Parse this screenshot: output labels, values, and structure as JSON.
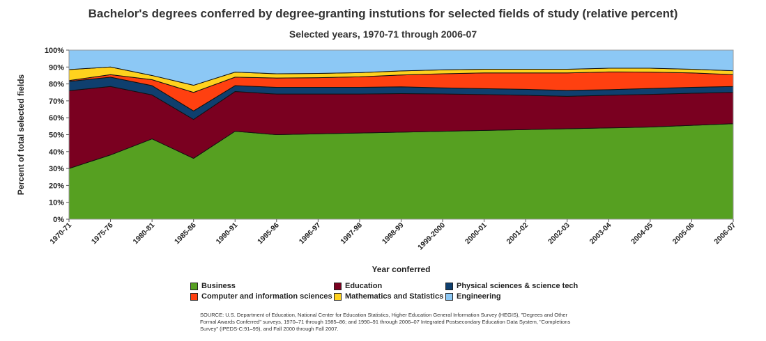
{
  "header": {
    "title": "Bachelor's degrees conferred by degree-granting instutions for selected fields of study (relative percent)",
    "subtitle": "Selected years, 1970-71 through 2006-07"
  },
  "source": "SOURCE: U.S. Department of Education, National Center for Education Statistics, Higher Education General Information Survey (HEGIS), \"Degrees and Other Formal Awards Conferred\" surveys, 1970–71 through 1985–86; and 1990–91 through 2006–07 Integrated Postsecondary Education Data System, \"Completions Survey\" (IPEDS-C:91–99), and Fall 2000 through Fall 2007.",
  "chart_data": {
    "type": "area",
    "stacked": true,
    "xlabel": "Year conferred",
    "ylabel": "Percent of total selected fields",
    "ylim": [
      0,
      100
    ],
    "yticks": [
      "0%",
      "10%",
      "20%",
      "30%",
      "40%",
      "50%",
      "60%",
      "70%",
      "80%",
      "90%",
      "100%"
    ],
    "grid": false,
    "legend_position": "bottom",
    "categories": [
      "1970-71",
      "1975-76",
      "1980-81",
      "1985-86",
      "1990-91",
      "1995-96",
      "1996-97",
      "1997-98",
      "1998-99",
      "1999-2000",
      "2000-01",
      "2001-02",
      "2002-03",
      "2003-04",
      "2004-05",
      "2005-06",
      "2006-07"
    ],
    "series": [
      {
        "name": "Business",
        "color": "#56a021",
        "values": [
          30,
          38,
          47.5,
          36,
          52,
          50,
          50.5,
          51,
          51.5,
          52,
          52.5,
          53,
          53.5,
          54,
          54.5,
          55.5,
          56.5
        ]
      },
      {
        "name": "Education",
        "color": "#7a0020",
        "values": [
          46,
          40.5,
          26,
          23,
          23.5,
          24,
          23.5,
          23,
          22.8,
          22.1,
          21.2,
          20.3,
          19.2,
          19.3,
          19.3,
          19,
          18.5
        ]
      },
      {
        "name": "Physical sciences & science tech",
        "color": "#0f3f6e",
        "values": [
          5.5,
          5.5,
          5.5,
          5,
          3.5,
          4,
          4,
          4,
          4,
          3.6,
          3.5,
          3.5,
          3.5,
          3.3,
          3.5,
          3.5,
          3.5
        ]
      },
      {
        "name": "Computer and information sciences",
        "color": "#ff4010",
        "values": [
          0.5,
          1.5,
          3.5,
          11,
          5,
          5.5,
          5.7,
          6.2,
          7,
          8.3,
          9.3,
          9.7,
          10.3,
          10.5,
          9.7,
          8.5,
          7
        ]
      },
      {
        "name": "Mathematics and Statistics",
        "color": "#ffd21e",
        "values": [
          6.5,
          4.5,
          2.5,
          4.2,
          3,
          2.5,
          2.5,
          2.5,
          2.4,
          2.3,
          2.2,
          2.2,
          2.2,
          2.2,
          2.3,
          2.2,
          2.3
        ]
      },
      {
        "name": "Engineering",
        "color": "#8cc8f5",
        "values": [
          11.5,
          10,
          15,
          20.8,
          13,
          14,
          13.8,
          13.3,
          12.3,
          11.7,
          11.3,
          11.3,
          11.3,
          10.7,
          10.7,
          11.3,
          12.2
        ]
      }
    ]
  }
}
